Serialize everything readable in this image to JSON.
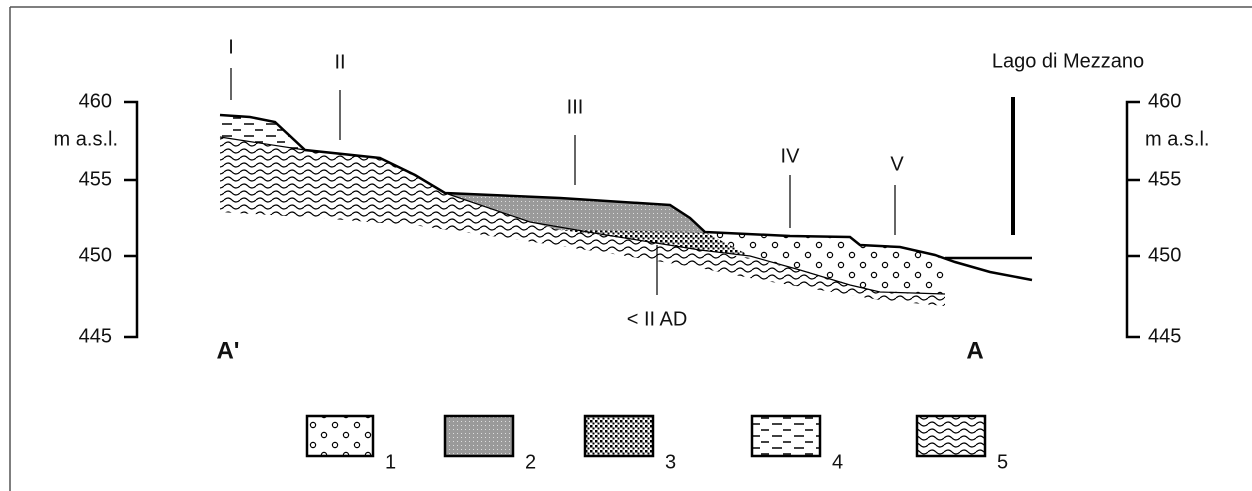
{
  "left_axis": {
    "ticks": [
      "460",
      "455",
      "450",
      "445"
    ],
    "unit": "m a.s.l."
  },
  "right_axis": {
    "ticks": [
      "460",
      "455",
      "450",
      "445"
    ],
    "unit": "m a.s.l."
  },
  "sites": [
    "I",
    "II",
    "III",
    "IV",
    "V"
  ],
  "lake_label": "Lago di Mezzano",
  "date_label": "< II AD",
  "section_ends": [
    "A'",
    "A"
  ],
  "legend": [
    "1",
    "2",
    "3",
    "4",
    "5"
  ]
}
